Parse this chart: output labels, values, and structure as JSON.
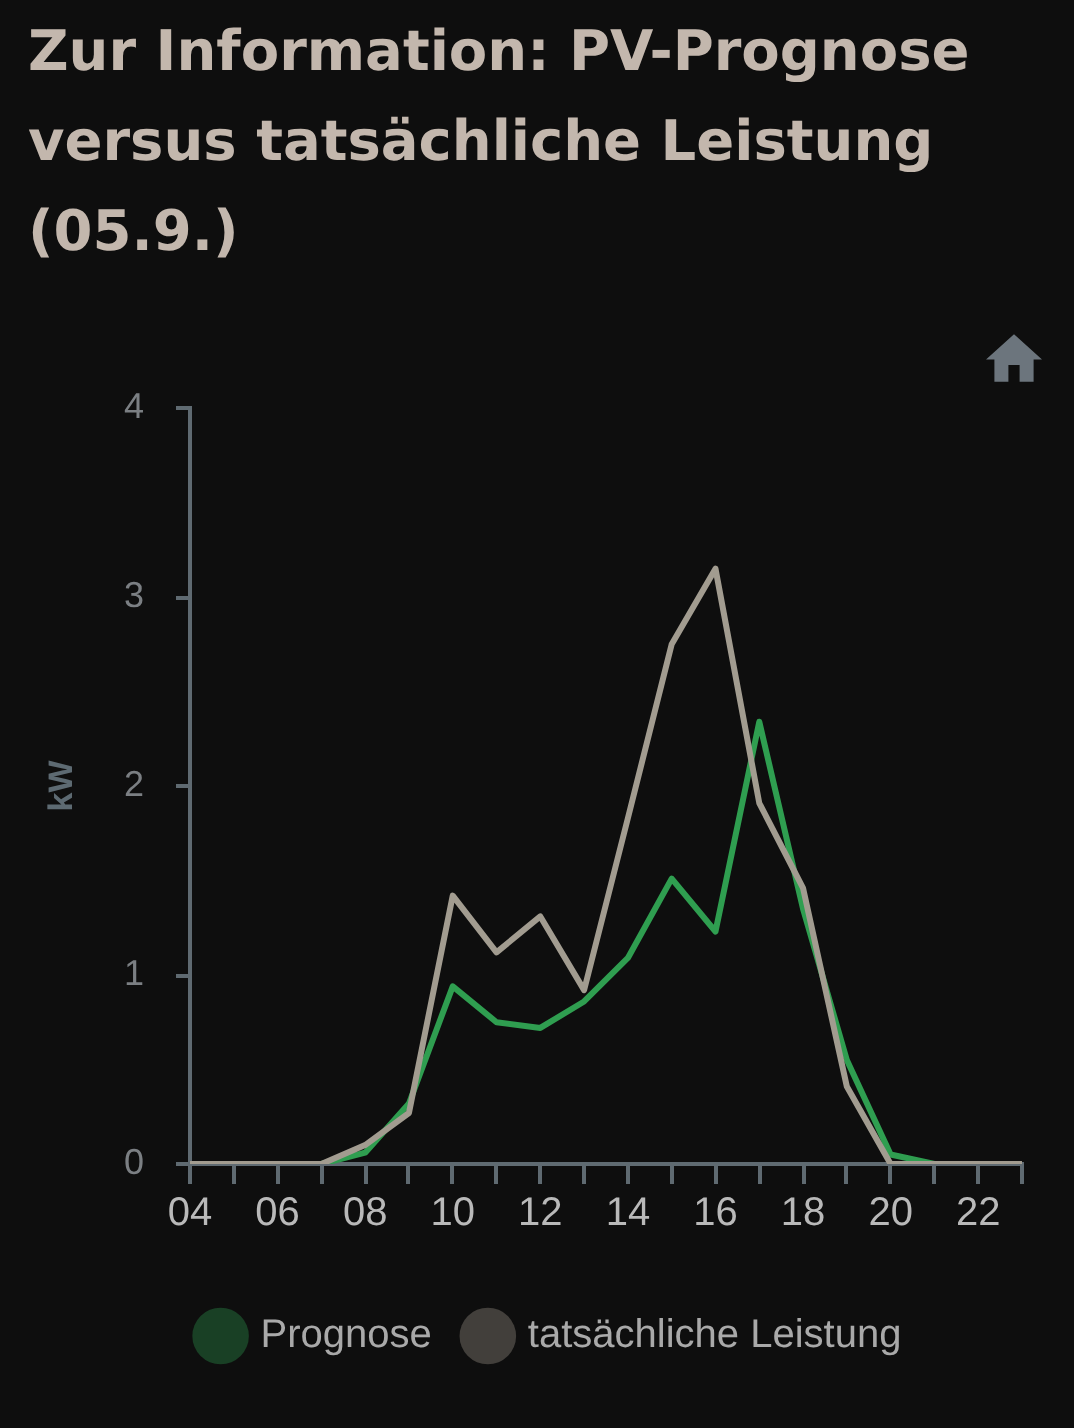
{
  "chart_data": {
    "type": "line",
    "title": "Zur Information: PV-Prognose versus tatsächliche Leistung (05.9.)",
    "ylabel": "kW",
    "x": [
      4,
      5,
      6,
      7,
      8,
      9,
      10,
      11,
      12,
      13,
      14,
      15,
      16,
      17,
      18,
      19,
      20,
      21,
      22,
      23
    ],
    "xlim": [
      4,
      23
    ],
    "xticks": [
      {
        "value": 4,
        "label": "04"
      },
      {
        "value": 5,
        "label": null
      },
      {
        "value": 6,
        "label": "06"
      },
      {
        "value": 7,
        "label": null
      },
      {
        "value": 8,
        "label": "08"
      },
      {
        "value": 9,
        "label": null
      },
      {
        "value": 10,
        "label": "10"
      },
      {
        "value": 11,
        "label": null
      },
      {
        "value": 12,
        "label": "12"
      },
      {
        "value": 13,
        "label": null
      },
      {
        "value": 14,
        "label": "14"
      },
      {
        "value": 15,
        "label": null
      },
      {
        "value": 16,
        "label": "16"
      },
      {
        "value": 17,
        "label": null
      },
      {
        "value": 18,
        "label": "18"
      },
      {
        "value": 19,
        "label": null
      },
      {
        "value": 20,
        "label": "20"
      },
      {
        "value": 21,
        "label": null
      },
      {
        "value": 22,
        "label": "22"
      },
      {
        "value": 23,
        "label": null
      }
    ],
    "ylim": [
      0,
      4
    ],
    "yticks": [
      0,
      1,
      2,
      3,
      4
    ],
    "series": [
      {
        "name": "Prognose",
        "color": "#2f9e50",
        "values": [
          null,
          null,
          0,
          0,
          0.06,
          0.32,
          0.94,
          0.75,
          0.72,
          0.86,
          1.09,
          1.51,
          1.23,
          2.34,
          1.35,
          0.55,
          0.05,
          0,
          0,
          0
        ]
      },
      {
        "name": "tatsächliche Leistung",
        "color": "#a29c90",
        "values": [
          0,
          0,
          0,
          0,
          0.1,
          0.27,
          1.42,
          1.12,
          1.31,
          0.92,
          1.83,
          2.75,
          3.15,
          1.91,
          1.46,
          0.41,
          0,
          0,
          0,
          0
        ]
      }
    ],
    "legend": "bottom",
    "grid": false,
    "marker": "none",
    "line_style": "solid"
  }
}
